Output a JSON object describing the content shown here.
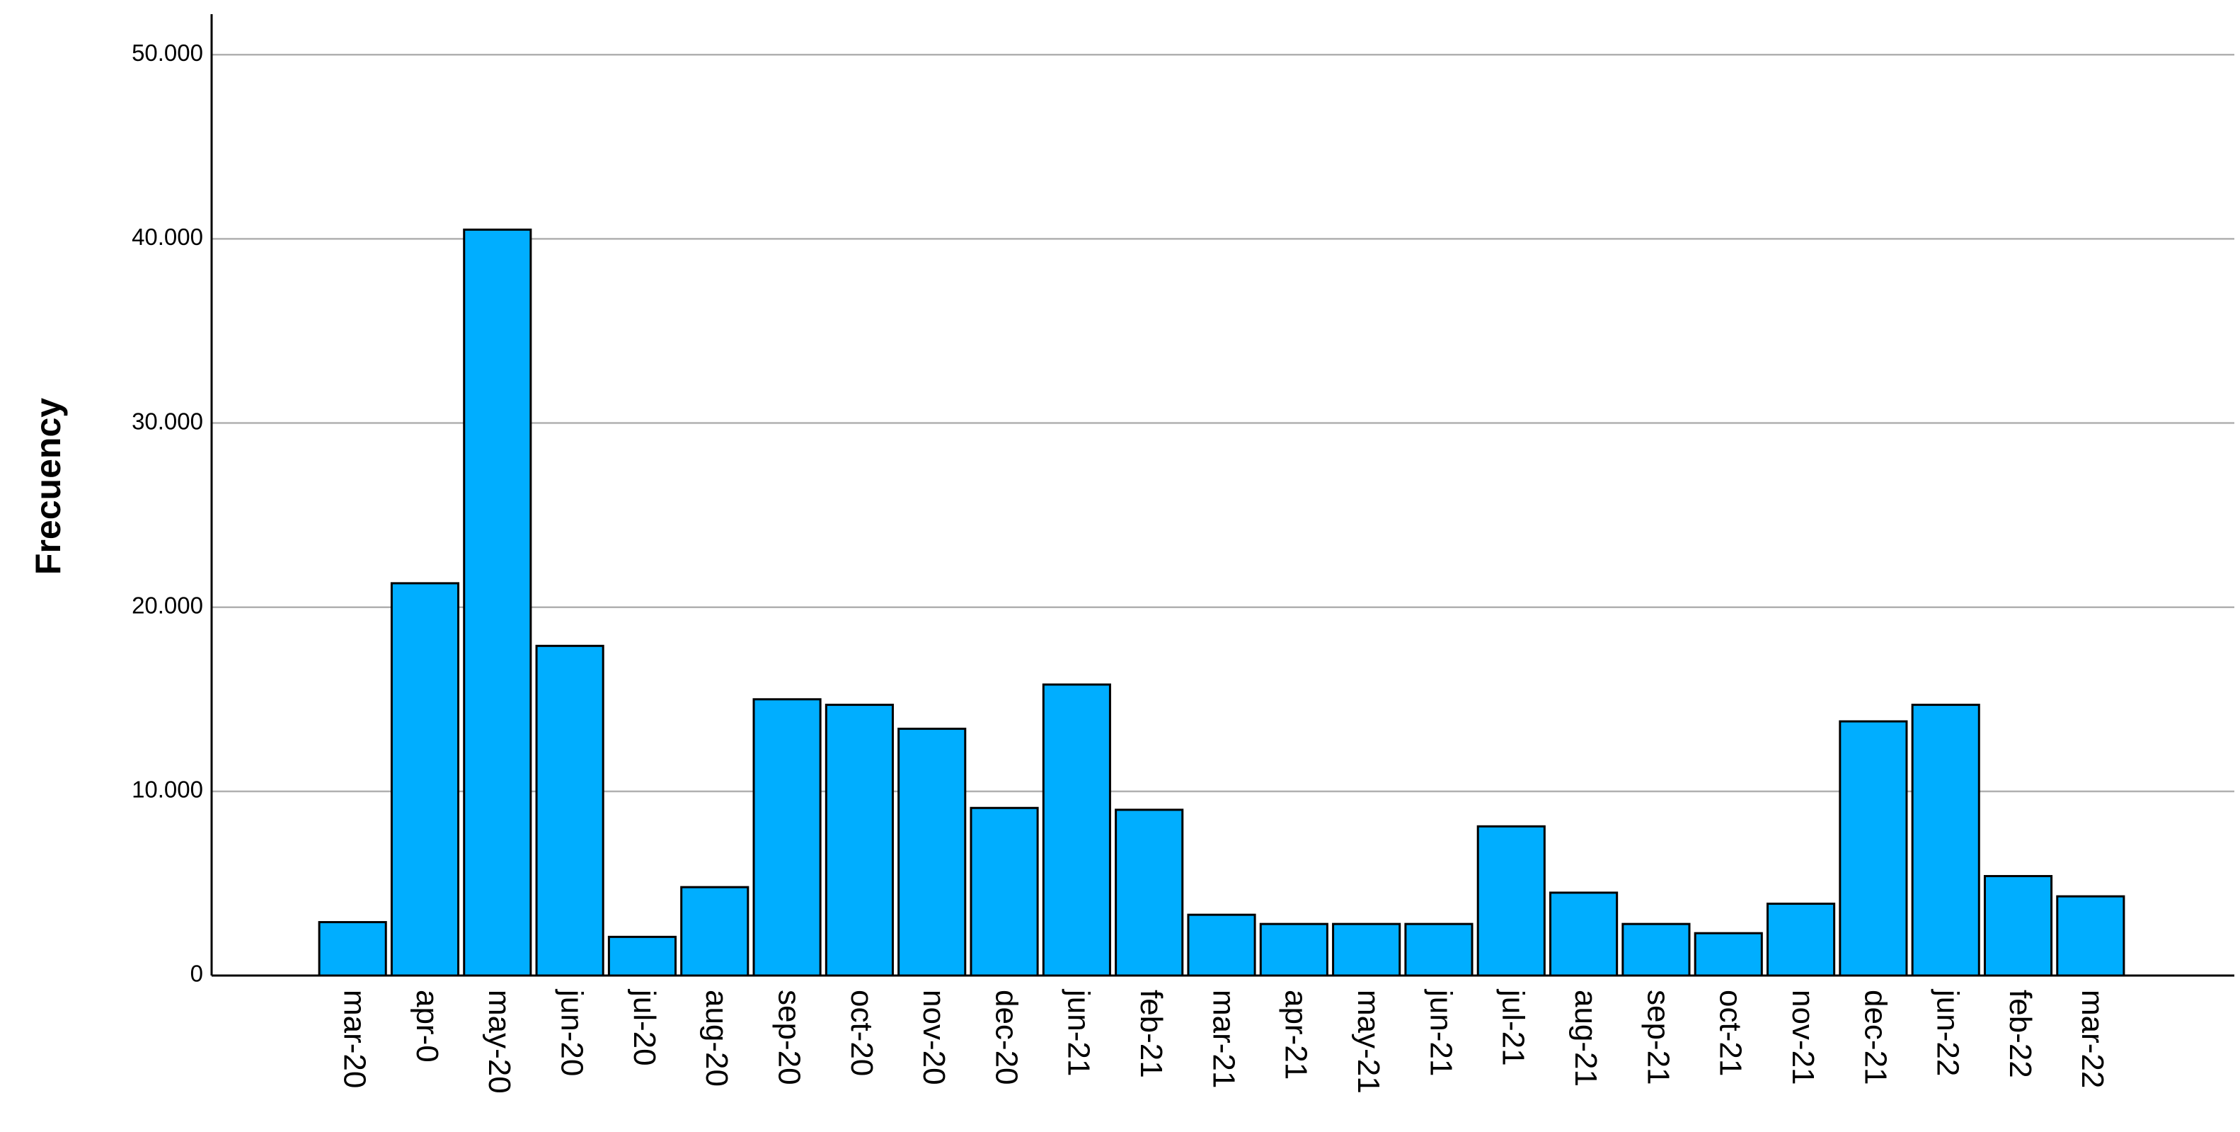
{
  "chart_data": {
    "type": "bar",
    "y_label": "Frecuency",
    "categories": [
      "mar-20",
      "apr-0",
      "may-20",
      "jun-20",
      "jul-20",
      "aug-20",
      "sep-20",
      "oct-20",
      "nov-20",
      "dec-20",
      "jun-21",
      "feb-21",
      "mar-21",
      "apr-21",
      "may-21",
      "jun-21",
      "jul-21",
      "aug-21",
      "sep-21",
      "oct-21",
      "nov-21",
      "dec-21",
      "jun-22",
      "feb-22",
      "mar-22"
    ],
    "values": [
      2900,
      21300,
      40500,
      17900,
      2100,
      4800,
      15000,
      14700,
      13400,
      9100,
      15800,
      9000,
      3300,
      2800,
      2800,
      2800,
      8100,
      4500,
      2800,
      2300,
      3900,
      13800,
      14700,
      5400,
      4300
    ],
    "color": "#00aeff",
    "ylim": [
      0,
      52200
    ],
    "yticks": [
      0,
      {
        "value": 10000,
        "label": "10.000"
      },
      {
        "value": 20000,
        "label": "20.000"
      },
      {
        "value": 30000,
        "label": "30.000"
      },
      {
        "value": 40000,
        "label": "40.000"
      },
      {
        "value": 50000,
        "label": "50.000"
      }
    ],
    "grid": true
  }
}
